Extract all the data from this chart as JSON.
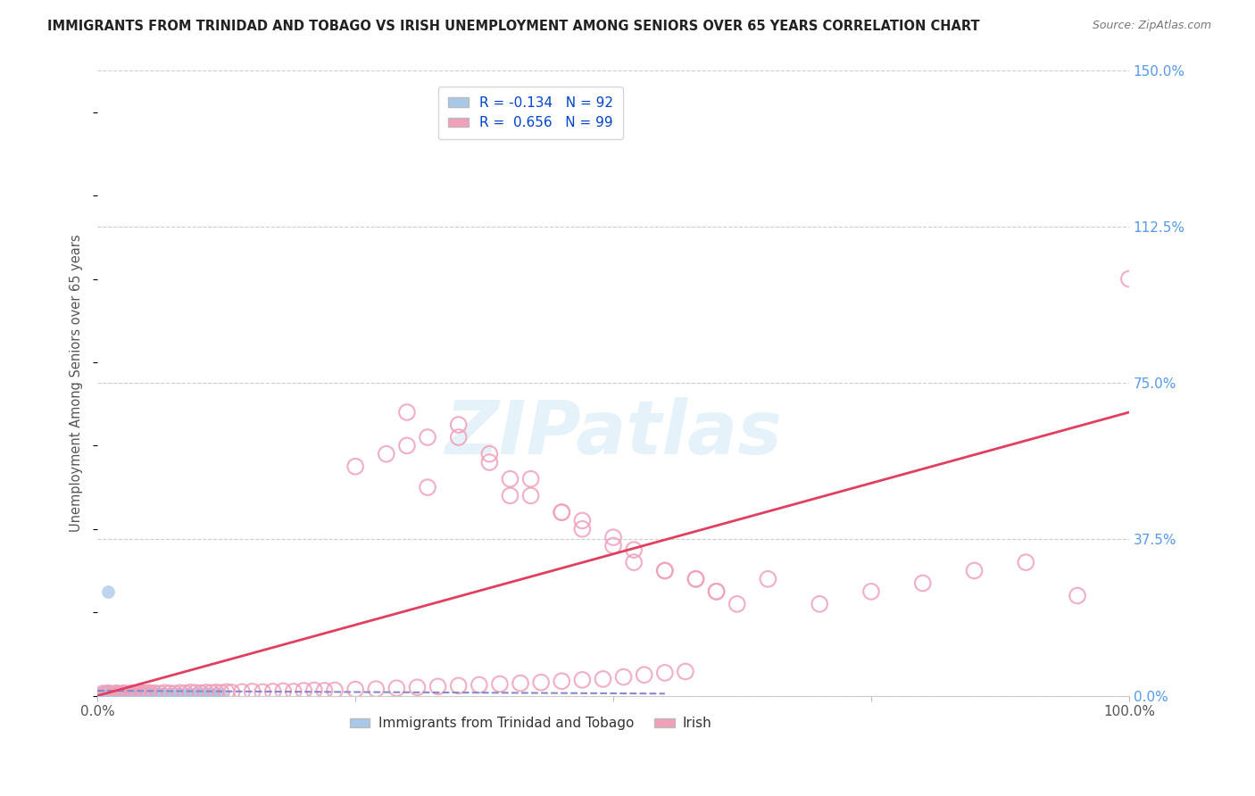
{
  "title": "IMMIGRANTS FROM TRINIDAD AND TOBAGO VS IRISH UNEMPLOYMENT AMONG SENIORS OVER 65 YEARS CORRELATION CHART",
  "source": "Source: ZipAtlas.com",
  "ylabel": "Unemployment Among Seniors over 65 years",
  "x_tick_labels": [
    "0.0%",
    "",
    "",
    "",
    "100.0%"
  ],
  "x_tick_positions": [
    0.0,
    0.25,
    0.5,
    0.75,
    1.0
  ],
  "y_tick_labels_right": [
    "150.0%",
    "112.5%",
    "75.0%",
    "37.5%",
    "0.0%"
  ],
  "y_tick_values": [
    1.5,
    1.125,
    0.75,
    0.375,
    0.0
  ],
  "xlim": [
    0.0,
    1.0
  ],
  "ylim": [
    0.0,
    1.5
  ],
  "legend_r1": "R = -0.134",
  "legend_n1": "N = 92",
  "legend_r2": "R =  0.656",
  "legend_n2": "N = 99",
  "color_blue": "#a8c8e8",
  "color_pink": "#f0a0b8",
  "trendline_blue_color": "#8888cc",
  "trendline_pink_color": "#e04060",
  "watermark": "ZIPatlas",
  "background_color": "#ffffff",
  "grid_color": "#cccccc",
  "title_color": "#333333",
  "right_tick_color": "#5599ee",
  "blue_trendline_x": [
    0.0,
    0.55
  ],
  "blue_trendline_y": [
    0.012,
    0.005
  ],
  "pink_trendline_x": [
    0.0,
    1.0
  ],
  "pink_trendline_y": [
    0.0,
    0.68
  ],
  "scatter_blue_x": [
    0.003,
    0.004,
    0.005,
    0.005,
    0.005,
    0.006,
    0.006,
    0.007,
    0.007,
    0.008,
    0.008,
    0.009,
    0.009,
    0.01,
    0.01,
    0.011,
    0.011,
    0.012,
    0.013,
    0.013,
    0.014,
    0.015,
    0.015,
    0.016,
    0.017,
    0.018,
    0.019,
    0.019,
    0.02,
    0.021,
    0.022,
    0.023,
    0.024,
    0.025,
    0.026,
    0.027,
    0.028,
    0.029,
    0.03,
    0.031,
    0.032,
    0.033,
    0.034,
    0.035,
    0.036,
    0.037,
    0.038,
    0.039,
    0.04,
    0.041,
    0.042,
    0.043,
    0.045,
    0.046,
    0.047,
    0.048,
    0.05,
    0.052,
    0.055,
    0.058,
    0.06,
    0.065,
    0.07,
    0.075,
    0.08,
    0.085,
    0.09,
    0.095,
    0.1,
    0.105,
    0.11,
    0.115,
    0.12,
    0.01,
    0.005,
    0.003,
    0.004,
    0.006,
    0.007,
    0.008,
    0.009,
    0.01,
    0.011,
    0.012,
    0.013,
    0.014,
    0.015,
    0.016,
    0.017,
    0.018,
    0.019,
    0.02
  ],
  "scatter_blue_y": [
    0.005,
    0.004,
    0.003,
    0.006,
    0.008,
    0.004,
    0.007,
    0.005,
    0.006,
    0.004,
    0.007,
    0.005,
    0.006,
    0.004,
    0.007,
    0.005,
    0.006,
    0.004,
    0.005,
    0.007,
    0.004,
    0.005,
    0.006,
    0.004,
    0.005,
    0.004,
    0.005,
    0.006,
    0.004,
    0.005,
    0.004,
    0.005,
    0.004,
    0.005,
    0.004,
    0.005,
    0.004,
    0.005,
    0.004,
    0.005,
    0.004,
    0.005,
    0.004,
    0.005,
    0.004,
    0.005,
    0.004,
    0.005,
    0.004,
    0.005,
    0.004,
    0.005,
    0.004,
    0.005,
    0.004,
    0.005,
    0.004,
    0.005,
    0.004,
    0.005,
    0.004,
    0.005,
    0.004,
    0.005,
    0.004,
    0.005,
    0.004,
    0.005,
    0.004,
    0.005,
    0.004,
    0.005,
    0.004,
    0.25,
    0.005,
    0.006,
    0.004,
    0.005,
    0.006,
    0.004,
    0.005,
    0.006,
    0.004,
    0.005,
    0.006,
    0.004,
    0.005,
    0.006,
    0.004,
    0.005,
    0.006,
    0.004
  ],
  "scatter_pink_x": [
    0.005,
    0.008,
    0.01,
    0.012,
    0.015,
    0.018,
    0.02,
    0.022,
    0.025,
    0.028,
    0.03,
    0.033,
    0.035,
    0.038,
    0.04,
    0.043,
    0.045,
    0.048,
    0.05,
    0.055,
    0.06,
    0.065,
    0.07,
    0.075,
    0.08,
    0.085,
    0.09,
    0.095,
    0.1,
    0.105,
    0.11,
    0.115,
    0.12,
    0.125,
    0.13,
    0.14,
    0.15,
    0.16,
    0.17,
    0.18,
    0.19,
    0.2,
    0.21,
    0.22,
    0.23,
    0.25,
    0.27,
    0.29,
    0.31,
    0.33,
    0.35,
    0.37,
    0.39,
    0.41,
    0.43,
    0.45,
    0.47,
    0.49,
    0.51,
    0.53,
    0.55,
    0.57,
    0.3,
    0.32,
    0.35,
    0.38,
    0.4,
    0.42,
    0.45,
    0.47,
    0.5,
    0.52,
    0.55,
    0.58,
    0.6,
    0.62,
    0.65,
    0.7,
    0.75,
    0.8,
    0.85,
    0.9,
    0.95,
    1.0,
    0.25,
    0.28,
    0.3,
    0.32,
    0.35,
    0.38,
    0.4,
    0.42,
    0.45,
    0.47,
    0.5,
    0.52,
    0.55,
    0.58,
    0.6
  ],
  "scatter_pink_y": [
    0.005,
    0.004,
    0.006,
    0.005,
    0.004,
    0.006,
    0.005,
    0.004,
    0.006,
    0.005,
    0.004,
    0.006,
    0.005,
    0.004,
    0.006,
    0.005,
    0.006,
    0.005,
    0.007,
    0.006,
    0.005,
    0.007,
    0.006,
    0.005,
    0.007,
    0.006,
    0.008,
    0.007,
    0.006,
    0.008,
    0.007,
    0.008,
    0.007,
    0.009,
    0.008,
    0.009,
    0.01,
    0.009,
    0.01,
    0.011,
    0.01,
    0.012,
    0.013,
    0.012,
    0.013,
    0.015,
    0.016,
    0.018,
    0.02,
    0.022,
    0.024,
    0.026,
    0.028,
    0.03,
    0.032,
    0.035,
    0.038,
    0.04,
    0.045,
    0.05,
    0.055,
    0.058,
    0.68,
    0.5,
    0.62,
    0.56,
    0.48,
    0.52,
    0.44,
    0.42,
    0.38,
    0.35,
    0.3,
    0.28,
    0.25,
    0.22,
    0.28,
    0.22,
    0.25,
    0.27,
    0.3,
    0.32,
    0.24,
    1.0,
    0.55,
    0.58,
    0.6,
    0.62,
    0.65,
    0.58,
    0.52,
    0.48,
    0.44,
    0.4,
    0.36,
    0.32,
    0.3,
    0.28,
    0.25
  ]
}
